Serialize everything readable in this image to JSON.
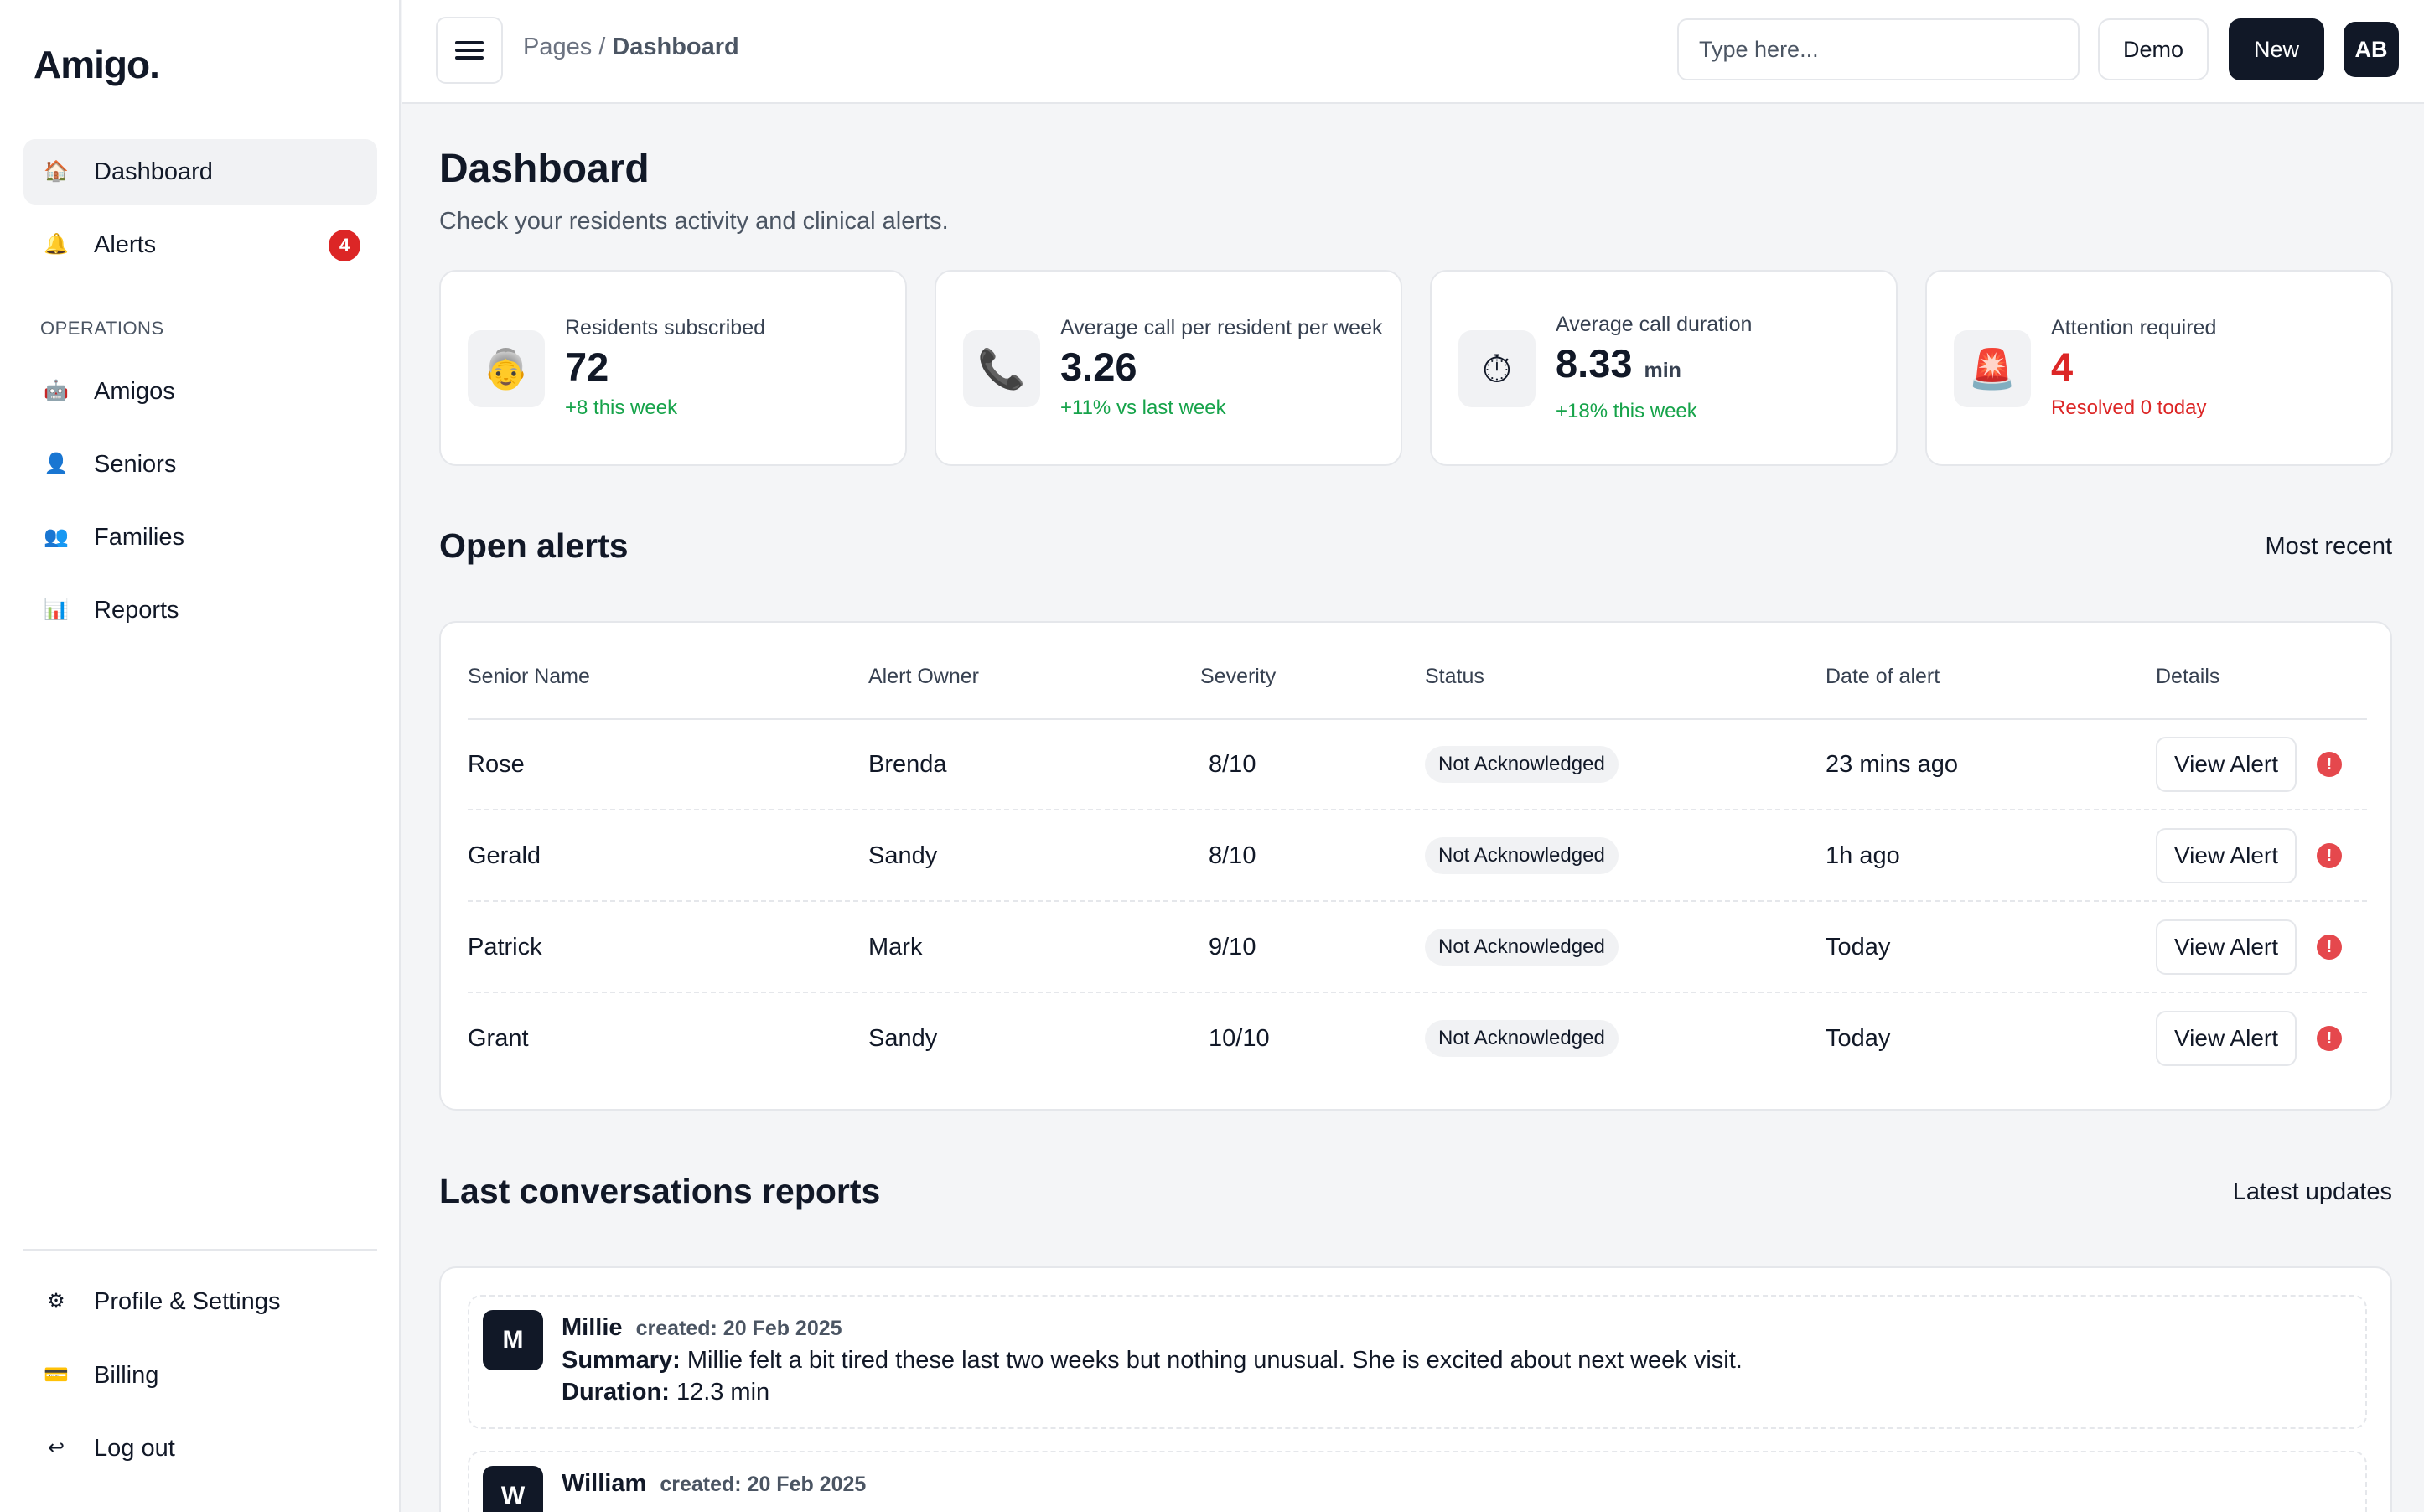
{
  "app": {
    "logo": "Amigo."
  },
  "sidebar": {
    "items": [
      {
        "id": "dashboard",
        "label": "Dashboard",
        "icon": "🏠",
        "icon_name": "house-icon",
        "active": true
      },
      {
        "id": "alerts",
        "label": "Alerts",
        "icon": "🔔",
        "icon_name": "bell-icon",
        "badge": "4"
      }
    ],
    "section_label": "OPERATIONS",
    "operations": [
      {
        "id": "amigos",
        "label": "Amigos",
        "icon": "🤖",
        "icon_name": "robot-icon"
      },
      {
        "id": "seniors",
        "label": "Seniors",
        "icon": "👤",
        "icon_name": "person-icon"
      },
      {
        "id": "families",
        "label": "Families",
        "icon": "👥",
        "icon_name": "people-icon"
      },
      {
        "id": "reports",
        "label": "Reports",
        "icon": "📊",
        "icon_name": "bar-chart-icon"
      }
    ],
    "bottom": [
      {
        "id": "profile-settings",
        "label": "Profile & Settings",
        "icon": "⚙",
        "icon_name": "gear-icon"
      },
      {
        "id": "billing",
        "label": "Billing",
        "icon": "💳",
        "icon_name": "credit-card-icon"
      },
      {
        "id": "logout",
        "label": "Log out",
        "icon": "↩",
        "icon_name": "logout-icon"
      }
    ]
  },
  "header": {
    "breadcrumb": {
      "parent": "Pages",
      "separator": "/",
      "current": "Dashboard"
    },
    "search": {
      "placeholder": "Type here...",
      "value": ""
    },
    "demo_label": "Demo",
    "new_label": "New",
    "avatar_initials": "AB"
  },
  "page": {
    "title": "Dashboard",
    "subtitle": "Check your residents activity and clinical alerts."
  },
  "stats": [
    {
      "id": "residents",
      "icon": "👵",
      "icon_name": "older-woman-icon",
      "label": "Residents subscribed",
      "value": "72",
      "unit": "",
      "change": "+8 this week",
      "tone": "positive"
    },
    {
      "id": "avg-calls",
      "icon": "📞",
      "icon_name": "phone-icon",
      "label": "Average call per resident per week",
      "value": "3.26",
      "unit": "",
      "change": "+11% vs last week",
      "tone": "positive"
    },
    {
      "id": "avg-duration",
      "icon": "⏱",
      "icon_name": "stopwatch-icon",
      "label": "Average call duration",
      "value": "8.33",
      "unit": "min",
      "change": "+18% this week",
      "tone": "positive"
    },
    {
      "id": "attention",
      "icon": "🚨",
      "icon_name": "siren-icon",
      "label": "Attention required",
      "value": "4",
      "unit": "",
      "change": "Resolved 0 today",
      "tone": "danger"
    }
  ],
  "open_alerts": {
    "title": "Open alerts",
    "sort_label": "Most recent",
    "columns": [
      "Senior Name",
      "Alert Owner",
      "Severity",
      "Status",
      "Date of alert",
      "Details"
    ],
    "rows": [
      {
        "senior": "Rose",
        "owner": "Brenda",
        "severity": "8/10",
        "status": "Not Acknowledged",
        "date": "23 mins ago",
        "action": "View Alert"
      },
      {
        "senior": "Gerald",
        "owner": "Sandy",
        "severity": "8/10",
        "status": "Not Acknowledged",
        "date": "1h ago",
        "action": "View Alert"
      },
      {
        "senior": "Patrick",
        "owner": "Mark",
        "severity": "9/10",
        "status": "Not Acknowledged",
        "date": "Today",
        "action": "View Alert"
      },
      {
        "senior": "Grant",
        "owner": "Sandy",
        "severity": "10/10",
        "status": "Not Acknowledged",
        "date": "Today",
        "action": "View Alert"
      }
    ],
    "alert_icon_glyph": "!"
  },
  "conversations": {
    "title": "Last conversations reports",
    "action_label": "Latest updates",
    "summary_label": "Summary:",
    "duration_label": "Duration:",
    "items": [
      {
        "initial": "M",
        "name": "Millie",
        "created": "created: 20 Feb 2025",
        "summary": "Millie felt a bit tired these last two weeks but nothing unusual. She is excited about next week visit.",
        "duration": "12.3 min"
      },
      {
        "initial": "W",
        "name": "William",
        "created": "created: 20 Feb 2025",
        "summary": "",
        "duration": ""
      }
    ]
  }
}
